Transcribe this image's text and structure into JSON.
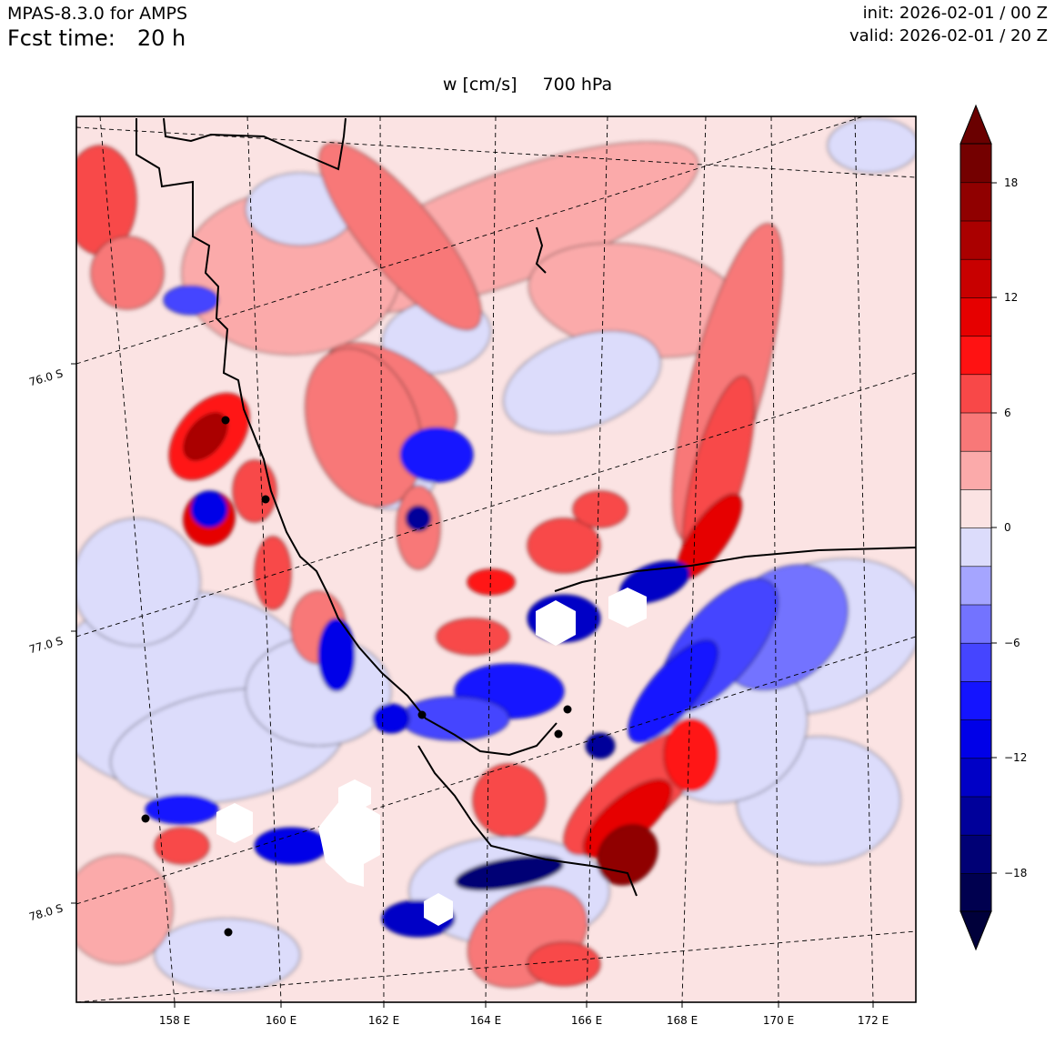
{
  "header": {
    "model": "MPAS-8.3.0 for AMPS",
    "fcst_label": "Fcst time:",
    "fcst_value": "20 h",
    "init": "init: 2026-02-01 / 00 Z",
    "valid": "valid: 2026-02-01 / 20 Z"
  },
  "plot": {
    "variable": "w [cm/s]",
    "level": "700 hPa"
  },
  "map": {
    "lon_labels": [
      "158 E",
      "160 E",
      "162 E",
      "164 E",
      "166 E",
      "168 E",
      "170 E",
      "172 E"
    ],
    "lat_labels": [
      "76.0 S",
      "77.0 S",
      "78.0 S"
    ]
  },
  "colorbar": {
    "tick_labels": [
      "18",
      "12",
      "6",
      "0",
      "−6",
      "−12",
      "−18"
    ],
    "levels": [
      -20,
      -18,
      -16,
      -14,
      -12,
      -10,
      -8,
      -6,
      -4,
      -2,
      0,
      2,
      4,
      6,
      8,
      10,
      12,
      14,
      16,
      18,
      20
    ],
    "colors": [
      "#00004f",
      "#000075",
      "#00009a",
      "#0000c6",
      "#0000e8",
      "#1414ff",
      "#4545ff",
      "#7373ff",
      "#a5a5ff",
      "#dcdcfb",
      "#fbe3e3",
      "#fbaaaa",
      "#f87878",
      "#f84848",
      "#ff1212",
      "#e60000",
      "#c80000",
      "#aa0000",
      "#900000",
      "#740000"
    ],
    "under_color": "#00003a",
    "over_color": "#6a0000"
  }
}
